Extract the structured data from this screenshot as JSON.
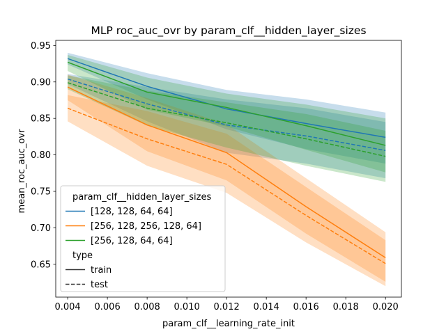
{
  "chart_data": {
    "type": "line",
    "title": "MLP roc_auc_ovr by param_clf__hidden_layer_sizes",
    "xlabel": "param_clf__learning_rate_init",
    "ylabel": "mean_roc_auc_ovr",
    "x": [
      0.004,
      0.008,
      0.012,
      0.016,
      0.02
    ],
    "xlim": [
      0.0034,
      0.0208
    ],
    "ylim": [
      0.605,
      0.957
    ],
    "xticks": [
      0.004,
      0.006,
      0.008,
      0.01,
      0.012,
      0.014,
      0.016,
      0.018,
      0.02
    ],
    "xtick_labels": [
      "0.004",
      "0.006",
      "0.008",
      "0.010",
      "0.012",
      "0.014",
      "0.016",
      "0.018",
      "0.020"
    ],
    "yticks": [
      0.65,
      0.7,
      0.75,
      0.8,
      0.85,
      0.9,
      0.95
    ],
    "ytick_labels": [
      "0.65",
      "0.70",
      "0.75",
      "0.80",
      "0.85",
      "0.90",
      "0.95"
    ],
    "grid": false,
    "legend_position": "lower-left",
    "legend": {
      "hue_title": "param_clf__hidden_layer_sizes",
      "style_title": "type",
      "style_items": [
        {
          "label": "train",
          "dash": "solid"
        },
        {
          "label": "test",
          "dash": "dashed"
        }
      ]
    },
    "series": [
      {
        "name": "[128, 128, 64, 64]",
        "color": "#1f77b4",
        "train": [
          0.932,
          0.894,
          0.863,
          0.843,
          0.824
        ],
        "train_low": [
          0.924,
          0.876,
          0.835,
          0.808,
          0.788
        ],
        "train_high": [
          0.94,
          0.912,
          0.889,
          0.876,
          0.858
        ],
        "test": [
          0.904,
          0.87,
          0.841,
          0.826,
          0.806
        ],
        "test_low": [
          0.897,
          0.846,
          0.803,
          0.788,
          0.768
        ],
        "test_high": [
          0.911,
          0.893,
          0.876,
          0.864,
          0.845
        ]
      },
      {
        "name": "[256, 128, 256, 128, 64]",
        "color": "#ff7f0e",
        "train": [
          0.893,
          0.841,
          0.803,
          0.729,
          0.659
        ],
        "train_low": [
          0.875,
          0.805,
          0.765,
          0.692,
          0.626
        ],
        "train_high": [
          0.91,
          0.878,
          0.842,
          0.768,
          0.694
        ],
        "test": [
          0.864,
          0.822,
          0.787,
          0.717,
          0.651
        ],
        "test_low": [
          0.846,
          0.785,
          0.748,
          0.68,
          0.62
        ],
        "test_high": [
          0.882,
          0.86,
          0.829,
          0.756,
          0.683
        ]
      },
      {
        "name": "[256, 128, 64, 64]",
        "color": "#2ca02c",
        "train": [
          0.927,
          0.886,
          0.865,
          0.84,
          0.813
        ],
        "train_low": [
          0.915,
          0.862,
          0.839,
          0.807,
          0.776
        ],
        "train_high": [
          0.937,
          0.906,
          0.884,
          0.869,
          0.85
        ],
        "test": [
          0.899,
          0.864,
          0.844,
          0.822,
          0.798
        ],
        "test_low": [
          0.89,
          0.84,
          0.81,
          0.785,
          0.763
        ],
        "test_high": [
          0.909,
          0.888,
          0.872,
          0.856,
          0.833
        ]
      }
    ]
  }
}
